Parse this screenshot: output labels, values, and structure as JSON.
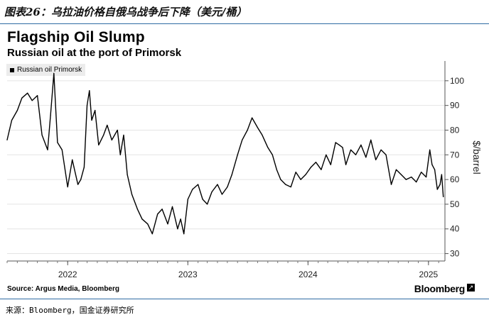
{
  "figure_caption": "图表26：乌拉油价格自俄乌战争后下降（美元/桶）",
  "footer_note": "来源：Bloomberg，国金证券研究所",
  "brand": "Bloomberg",
  "source": "Source: Argus Media, Bloomberg",
  "chart_data": {
    "type": "line",
    "title": "Flagship Oil Slump",
    "subtitle": "Russian oil at the port of Primorsk",
    "ylabel": "$/barrel",
    "ylim": [
      27,
      108
    ],
    "xlim": [
      "2021-07-01",
      "2025-02-20"
    ],
    "yticks": [
      30,
      40,
      50,
      60,
      70,
      80,
      90,
      100
    ],
    "xticks": [
      {
        "date": "2022-01-01",
        "label": "2022"
      },
      {
        "date": "2023-01-01",
        "label": "2023"
      },
      {
        "date": "2024-01-01",
        "label": "2024"
      },
      {
        "date": "2025-01-01",
        "label": "2025"
      }
    ],
    "grid": "horizontal",
    "legend_position": "top-left",
    "line_color": "#000000",
    "series": [
      {
        "name": "Russian oil Primorsk",
        "x": [
          "2021-07-01",
          "2021-07-15",
          "2021-08-01",
          "2021-08-15",
          "2021-09-01",
          "2021-09-15",
          "2021-10-01",
          "2021-10-15",
          "2021-11-01",
          "2021-11-10",
          "2021-11-20",
          "2021-12-01",
          "2021-12-15",
          "2022-01-01",
          "2022-01-15",
          "2022-02-01",
          "2022-02-10",
          "2022-02-20",
          "2022-03-01",
          "2022-03-08",
          "2022-03-15",
          "2022-03-25",
          "2022-04-05",
          "2022-04-20",
          "2022-05-01",
          "2022-05-15",
          "2022-06-01",
          "2022-06-10",
          "2022-06-20",
          "2022-07-01",
          "2022-07-15",
          "2022-08-01",
          "2022-08-15",
          "2022-09-01",
          "2022-09-15",
          "2022-10-01",
          "2022-10-15",
          "2022-11-01",
          "2022-11-15",
          "2022-12-01",
          "2022-12-10",
          "2022-12-20",
          "2023-01-01",
          "2023-01-15",
          "2023-02-01",
          "2023-02-15",
          "2023-03-01",
          "2023-03-15",
          "2023-04-01",
          "2023-04-15",
          "2023-05-01",
          "2023-05-15",
          "2023-06-01",
          "2023-06-15",
          "2023-07-01",
          "2023-07-15",
          "2023-08-01",
          "2023-08-15",
          "2023-09-01",
          "2023-09-15",
          "2023-09-28",
          "2023-10-10",
          "2023-10-25",
          "2023-11-10",
          "2023-11-25",
          "2023-12-10",
          "2023-12-25",
          "2024-01-10",
          "2024-01-25",
          "2024-02-10",
          "2024-02-25",
          "2024-03-10",
          "2024-03-25",
          "2024-04-05",
          "2024-04-15",
          "2024-04-25",
          "2024-05-10",
          "2024-05-25",
          "2024-06-10",
          "2024-06-25",
          "2024-07-10",
          "2024-07-25",
          "2024-08-10",
          "2024-08-25",
          "2024-09-10",
          "2024-09-25",
          "2024-10-10",
          "2024-10-25",
          "2024-11-10",
          "2024-11-25",
          "2024-12-10",
          "2024-12-25",
          "2025-01-05",
          "2025-01-12",
          "2025-01-20",
          "2025-01-28",
          "2025-02-05",
          "2025-02-10",
          "2025-02-15"
        ],
        "y": [
          76,
          84,
          88,
          93,
          95,
          92,
          94,
          78,
          72,
          86,
          103,
          75,
          72,
          57,
          68,
          58,
          60,
          65,
          90,
          96,
          84,
          88,
          74,
          78,
          82,
          76,
          80,
          70,
          78,
          62,
          54,
          48,
          44,
          42,
          38,
          46,
          48,
          42,
          49,
          40,
          44,
          38,
          52,
          56,
          58,
          52,
          50,
          55,
          58,
          54,
          57,
          62,
          70,
          76,
          80,
          85,
          81,
          78,
          73,
          70,
          64,
          60,
          58,
          57,
          63,
          60,
          62,
          65,
          67,
          64,
          70,
          66,
          75,
          74,
          73,
          66,
          72,
          70,
          74,
          69,
          76,
          68,
          72,
          70,
          58,
          64,
          62,
          60,
          61,
          59,
          63,
          61,
          72,
          66,
          64,
          56,
          58,
          62,
          53
        ]
      }
    ]
  }
}
